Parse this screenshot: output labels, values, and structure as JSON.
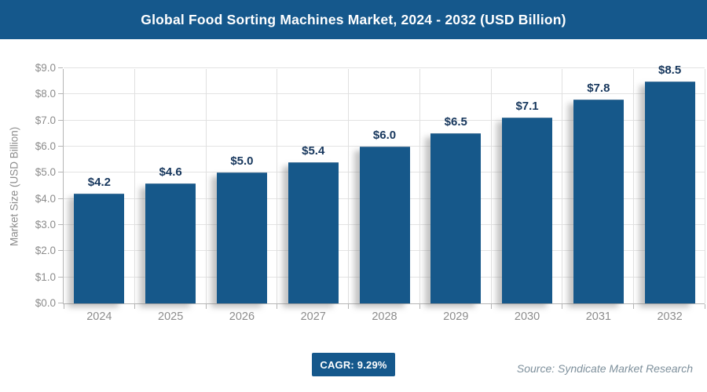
{
  "header": {
    "title": "Global Food Sorting Machines Market, 2024 - 2032 (USD Billion)"
  },
  "chart_data": {
    "type": "bar",
    "title": "Global Food Sorting Machines Market, 2024 - 2032 (USD Billion)",
    "categories": [
      "2024",
      "2025",
      "2026",
      "2027",
      "2028",
      "2029",
      "2030",
      "2031",
      "2032"
    ],
    "values": [
      4.2,
      4.6,
      5.0,
      5.4,
      6.0,
      6.5,
      7.1,
      7.8,
      8.5
    ],
    "value_labels": [
      "$4.2",
      "$4.6",
      "$5.0",
      "$5.4",
      "$6.0",
      "$6.5",
      "$7.1",
      "$7.8",
      "$8.5"
    ],
    "xlabel": "",
    "ylabel": "Market Size (USD Billion)",
    "ylim": [
      0,
      9
    ],
    "ytick_step": 1,
    "ytick_labels": [
      "$0.0",
      "$1.0",
      "$2.0",
      "$3.0",
      "$4.0",
      "$5.0",
      "$6.0",
      "$7.0",
      "$8.0",
      "$9.0"
    ],
    "grid": true,
    "legend": false
  },
  "footer": {
    "cagr_label": "CAGR: 9.29%",
    "source": "Source: Syndicate Market Research"
  },
  "colors": {
    "brand": "#15588C",
    "bar": "#16588A",
    "value_label": "#17375D",
    "axis_text": "#8c8c8c",
    "gridline": "#e3e3e3",
    "axis_line": "#b5b5b5"
  }
}
